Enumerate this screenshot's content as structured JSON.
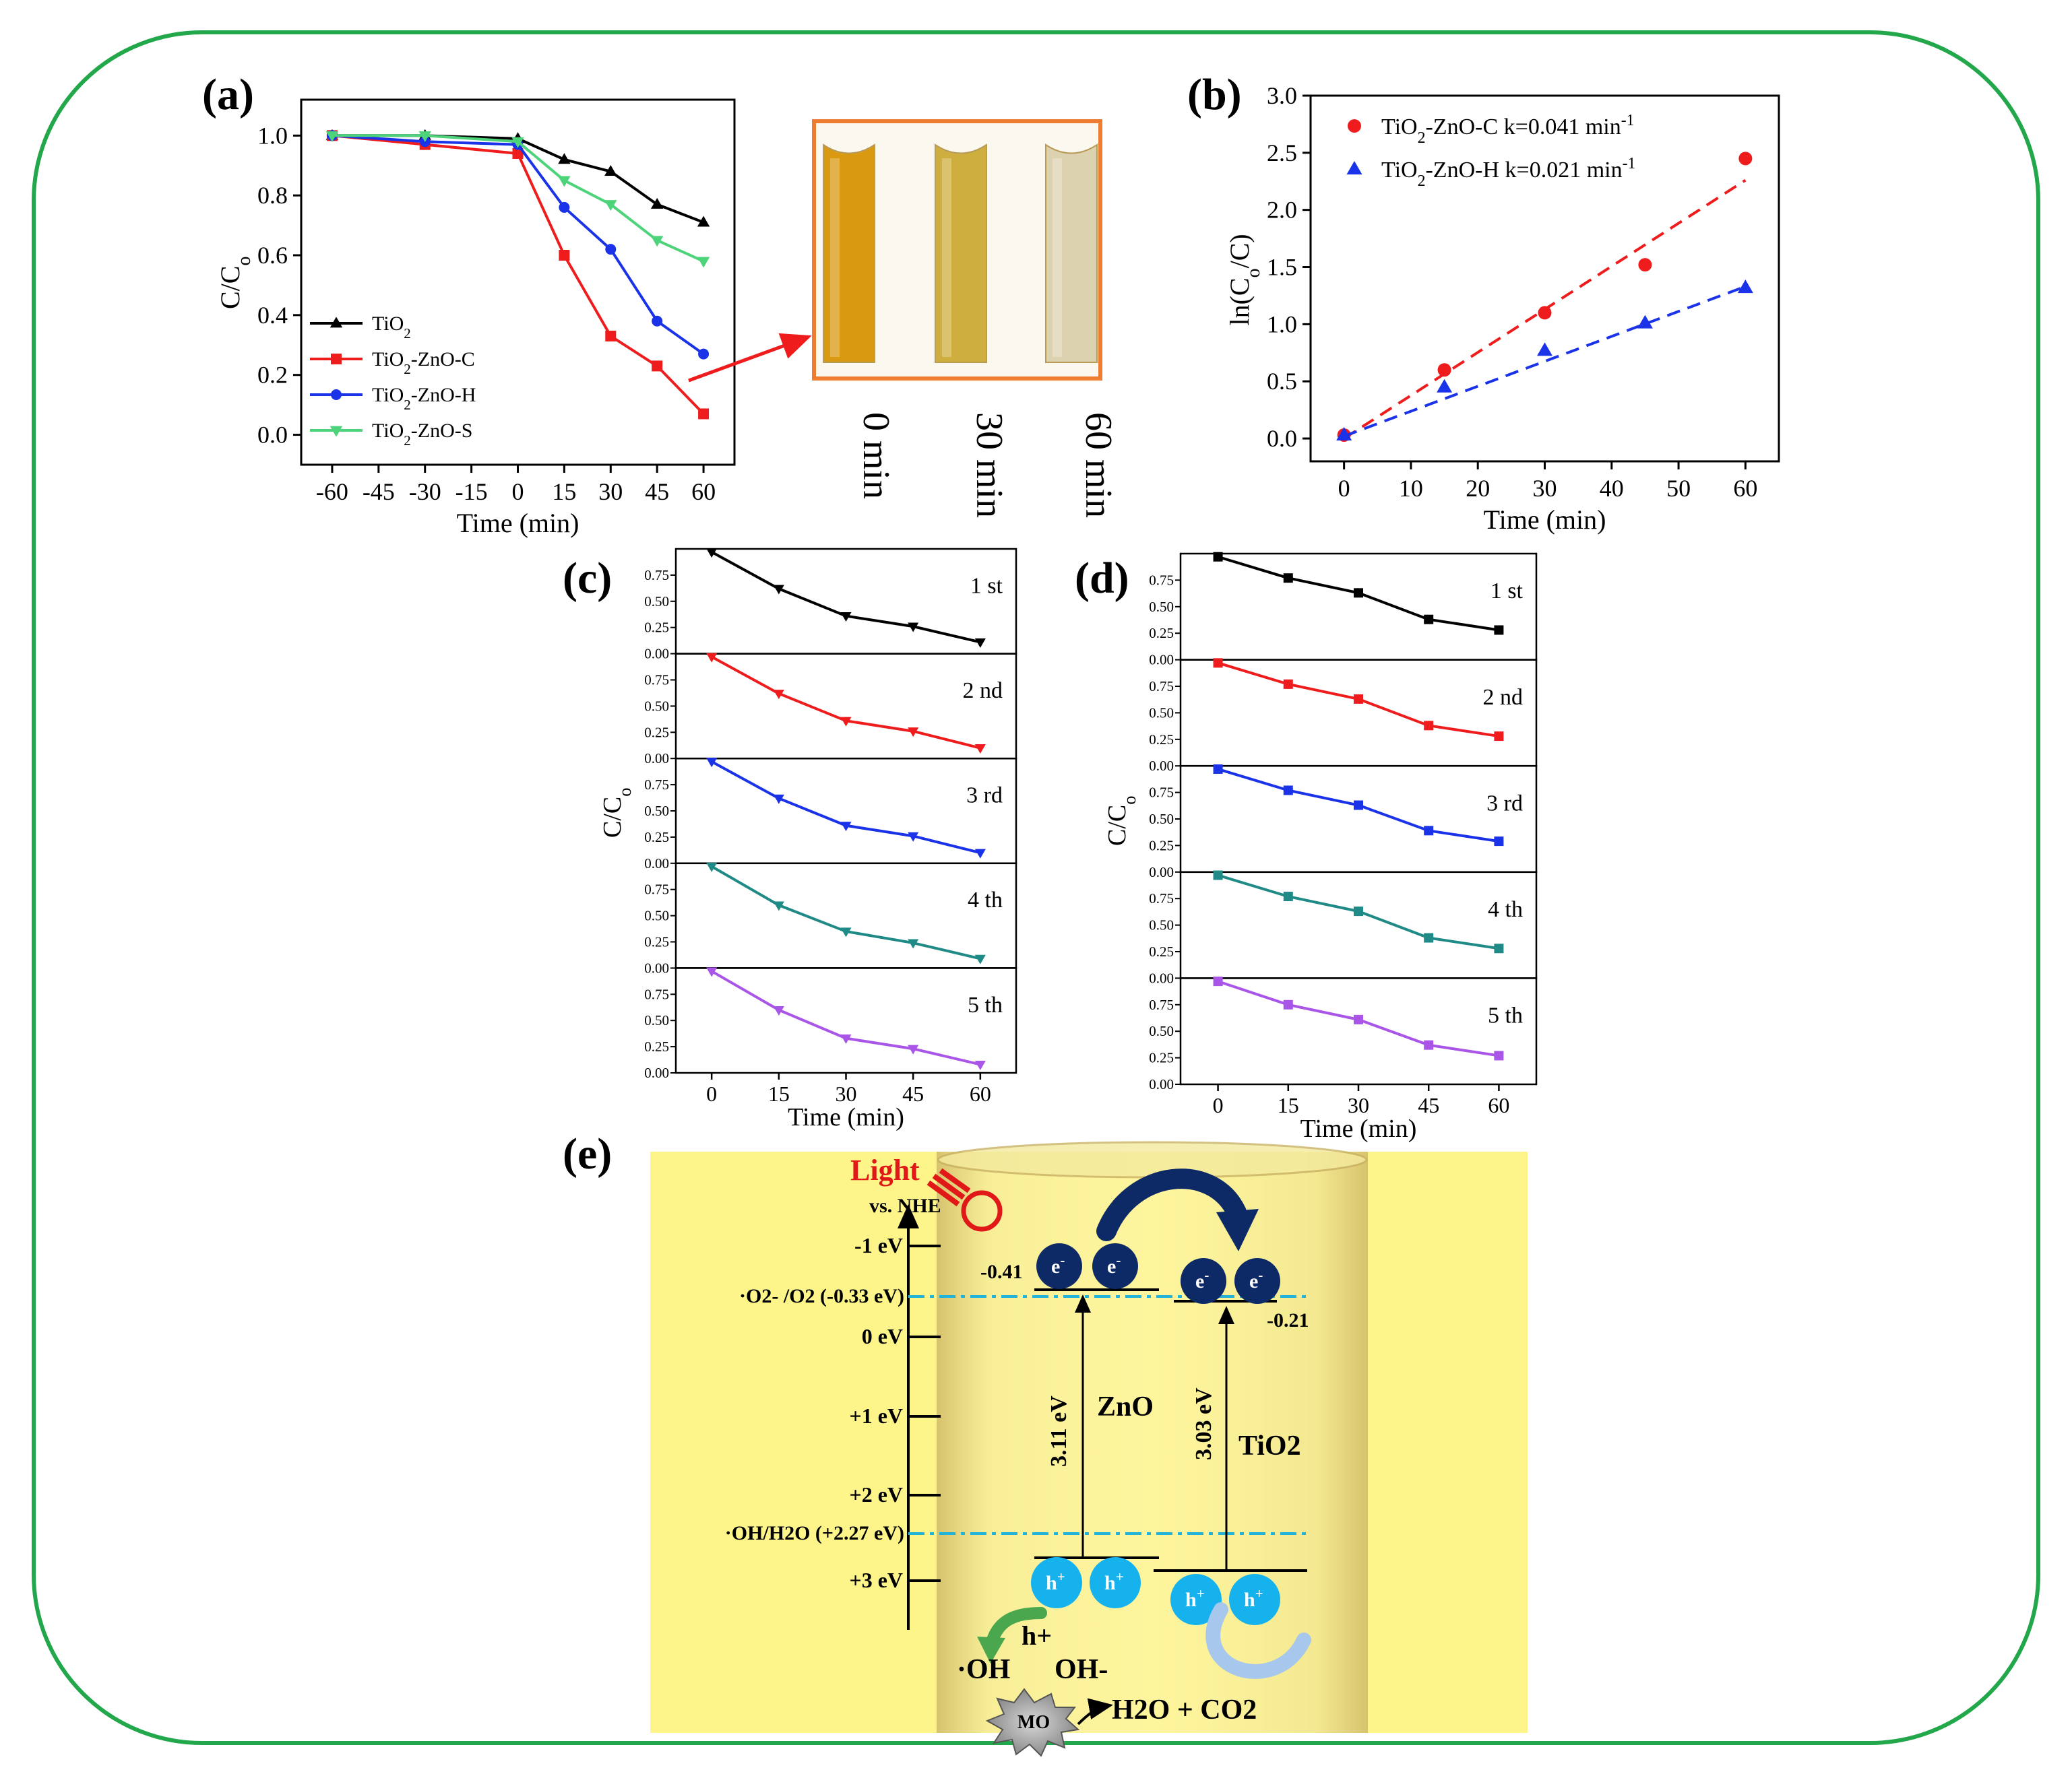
{
  "panel_labels": {
    "a": "(a)",
    "b": "(b)",
    "c": "(c)",
    "d": "(d)",
    "e": "(e)"
  },
  "chart_data": [
    {
      "id": "a",
      "type": "line",
      "title": "",
      "xlabel": "Time (min)",
      "ylabel": "C/C0",
      "xlim": [
        -70,
        70
      ],
      "ylim": [
        -0.1,
        1.12
      ],
      "xticks": [
        -60,
        -45,
        -30,
        -15,
        0,
        15,
        30,
        45,
        60
      ],
      "yticks": [
        0.0,
        0.2,
        0.4,
        0.6,
        0.8,
        1.0
      ],
      "x": [
        -60,
        -30,
        0,
        15,
        30,
        45,
        60
      ],
      "legend_position": "bottom-left",
      "series": [
        {
          "name": "TiO2",
          "color": "#000000",
          "marker": "triangle-up",
          "values": [
            1.0,
            1.0,
            0.99,
            0.92,
            0.88,
            0.77,
            0.71
          ]
        },
        {
          "name": "TiO2-ZnO-C",
          "color": "#ee1c1c",
          "marker": "square",
          "values": [
            1.0,
            0.97,
            0.94,
            0.6,
            0.33,
            0.23,
            0.07
          ]
        },
        {
          "name": "TiO2-ZnO-H",
          "color": "#1a33e8",
          "marker": "circle",
          "values": [
            1.0,
            0.98,
            0.97,
            0.76,
            0.62,
            0.38,
            0.27
          ]
        },
        {
          "name": "TiO2-ZnO-S",
          "color": "#4dd47a",
          "marker": "triangle-down",
          "values": [
            1.0,
            1.0,
            0.98,
            0.85,
            0.77,
            0.65,
            0.58
          ]
        }
      ]
    },
    {
      "id": "b",
      "type": "scatter",
      "title": "",
      "xlabel": "Time (min)",
      "ylabel": "ln(C0/C)",
      "xlim": [
        -5,
        65
      ],
      "ylim": [
        -0.2,
        3.0
      ],
      "xticks": [
        0,
        10,
        20,
        30,
        40,
        50,
        60
      ],
      "yticks": [
        0.0,
        0.5,
        1.0,
        1.5,
        2.0,
        2.5,
        3.0
      ],
      "legend_position": "top-left",
      "series": [
        {
          "name": "TiO2-ZnO-C",
          "k_label": "k=0.041 min-1",
          "color": "#ee1c1c",
          "marker": "circle",
          "x": [
            0,
            15,
            30,
            45,
            60
          ],
          "values": [
            0.03,
            0.6,
            1.1,
            1.52,
            2.45
          ],
          "fit": [
            [
              0,
              0.0
            ],
            [
              60,
              2.26
            ]
          ]
        },
        {
          "name": "TiO2-ZnO-H",
          "k_label": "k=0.021 min-1",
          "color": "#1a33e8",
          "marker": "triangle-up",
          "x": [
            0,
            15,
            30,
            45,
            60
          ],
          "values": [
            0.03,
            0.45,
            0.77,
            1.01,
            1.32
          ],
          "fit": [
            [
              0,
              0.02
            ],
            [
              60,
              1.33
            ]
          ]
        }
      ]
    },
    {
      "id": "c",
      "type": "line",
      "title": "",
      "xlabel": "Time (min)",
      "ylabel": "C/C0",
      "x": [
        0,
        15,
        30,
        45,
        60
      ],
      "xticks": [
        0,
        15,
        30,
        45,
        60
      ],
      "yticks": [
        0.0,
        0.25,
        0.5,
        0.75
      ],
      "ylim": [
        0,
        1.0
      ],
      "marker": "triangle-down",
      "cycles": [
        {
          "label": "1 st",
          "color": "#000000",
          "values": [
            0.97,
            0.62,
            0.36,
            0.26,
            0.11
          ]
        },
        {
          "label": "2 nd",
          "color": "#ee1c1c",
          "values": [
            0.97,
            0.62,
            0.36,
            0.26,
            0.1
          ]
        },
        {
          "label": "3 rd",
          "color": "#1a33e8",
          "values": [
            0.97,
            0.62,
            0.36,
            0.26,
            0.1
          ]
        },
        {
          "label": "4 th",
          "color": "#1f8a86",
          "values": [
            0.97,
            0.6,
            0.35,
            0.24,
            0.09
          ]
        },
        {
          "label": "5 th",
          "color": "#a855e8",
          "values": [
            0.97,
            0.6,
            0.33,
            0.23,
            0.08
          ]
        }
      ]
    },
    {
      "id": "d",
      "type": "line",
      "title": "",
      "xlabel": "Time (min)",
      "ylabel": "C/C0",
      "x": [
        0,
        15,
        30,
        45,
        60
      ],
      "xticks": [
        0,
        15,
        30,
        45,
        60
      ],
      "yticks": [
        0.0,
        0.25,
        0.5,
        0.75
      ],
      "ylim": [
        0,
        1.0
      ],
      "marker": "square",
      "cycles": [
        {
          "label": "1 st",
          "color": "#000000",
          "values": [
            0.97,
            0.77,
            0.63,
            0.38,
            0.28
          ]
        },
        {
          "label": "2 nd",
          "color": "#ee1c1c",
          "values": [
            0.97,
            0.77,
            0.63,
            0.38,
            0.28
          ]
        },
        {
          "label": "3 rd",
          "color": "#1a33e8",
          "values": [
            0.97,
            0.77,
            0.63,
            0.39,
            0.29
          ]
        },
        {
          "label": "4 th",
          "color": "#1f8a86",
          "values": [
            0.97,
            0.77,
            0.63,
            0.38,
            0.28
          ]
        },
        {
          "label": "5 th",
          "color": "#a855e8",
          "values": [
            0.97,
            0.75,
            0.61,
            0.37,
            0.27
          ]
        }
      ]
    }
  ],
  "photo": {
    "labels": [
      "0 min",
      "30 min",
      "60 min"
    ],
    "colors": [
      "#d99a12",
      "#cfae40",
      "#dcd2b0"
    ],
    "frame_color": "#ee7d31"
  },
  "diagram": {
    "background_color": "#fdf58a",
    "light_label": "Light",
    "vs_label": "vs. NHE",
    "energy_ticks": [
      "-1 eV",
      "0 eV",
      "+1 eV",
      "+2 eV",
      "+3 eV"
    ],
    "redox": [
      {
        "label": "·O2- /O2 (-0.33 eV)",
        "value": -0.33
      },
      {
        "label": "·OH/H2O (+2.27 eV)",
        "value": 2.27
      }
    ],
    "zno": {
      "name": "ZnO",
      "cb": -0.41,
      "cb_label": "-0.41",
      "gap_label": "3.11 eV"
    },
    "tio2": {
      "name": "TiO2",
      "cb": -0.21,
      "cb_label": "-0.21",
      "gap_label": "3.03 eV"
    },
    "electron_label": "e-",
    "hole_label": "h+",
    "hole_arrow_label": "h+",
    "oh_radical": "·OH",
    "oh_minus": "OH-",
    "mo_label": "MO",
    "product": "H2O + CO2"
  }
}
